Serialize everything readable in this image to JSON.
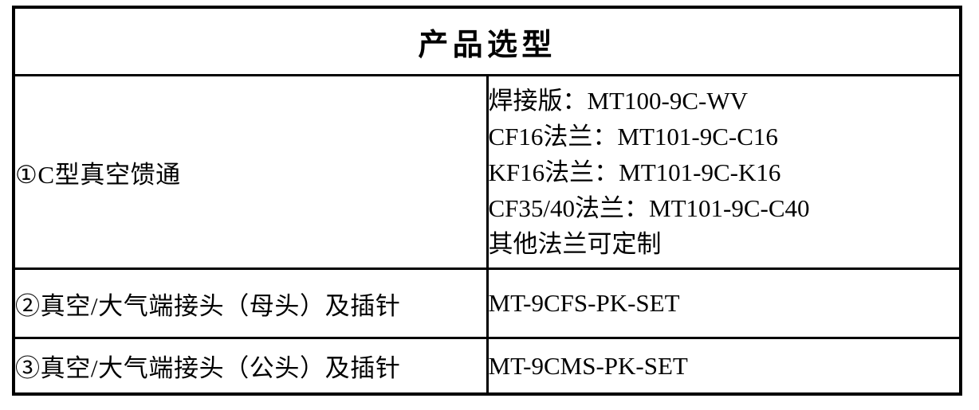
{
  "table": {
    "title": "产品选型",
    "rows": [
      {
        "product": "①C型真空馈通",
        "models": [
          "焊接版：MT100-9C-WV",
          "CF16法兰：MT101-9C-C16",
          "KF16法兰：MT101-9C-K16",
          "CF35/40法兰：MT101-9C-C40",
          "其他法兰可定制"
        ]
      },
      {
        "product": "②真空/大气端接头（母头）及插针",
        "models": [
          "MT-9CFS-PK-SET"
        ]
      },
      {
        "product": "③真空/大气端接头（公头）及插针",
        "models": [
          "MT-9CMS-PK-SET"
        ]
      }
    ]
  },
  "colors": {
    "border": "#000000",
    "text": "#000000",
    "background": "#ffffff"
  }
}
